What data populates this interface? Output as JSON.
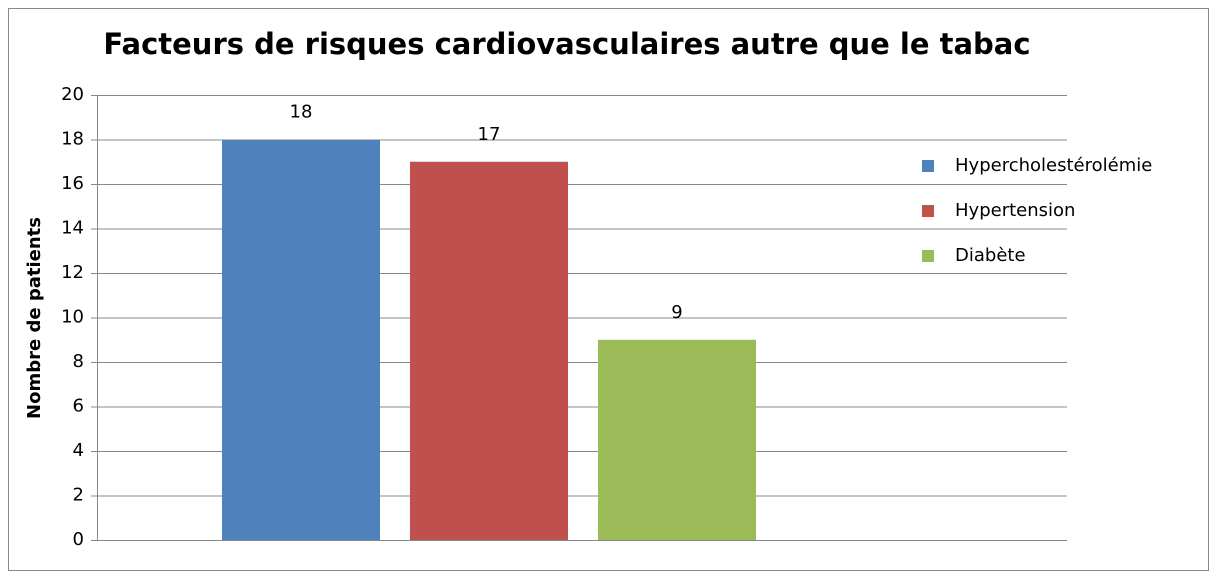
{
  "chart_data": {
    "type": "bar",
    "title": "Facteurs de risques cardiovasculaires autre que le tabac",
    "y_label": "Nombre de patients",
    "categories": [
      null
    ],
    "series": [
      {
        "name": "Hypercholestérolémie",
        "color": "#4f81bd",
        "values": [
          18
        ]
      },
      {
        "name": "Hypertension",
        "color": "#c0504d",
        "values": [
          17
        ]
      },
      {
        "name": "Diabète",
        "color": "#9bbb59",
        "values": [
          9
        ]
      }
    ],
    "ylim": [
      0,
      20
    ],
    "yticks": [
      0,
      2,
      4,
      6,
      8,
      10,
      12,
      14,
      16,
      18,
      20
    ],
    "grid": true,
    "legend": "right"
  }
}
